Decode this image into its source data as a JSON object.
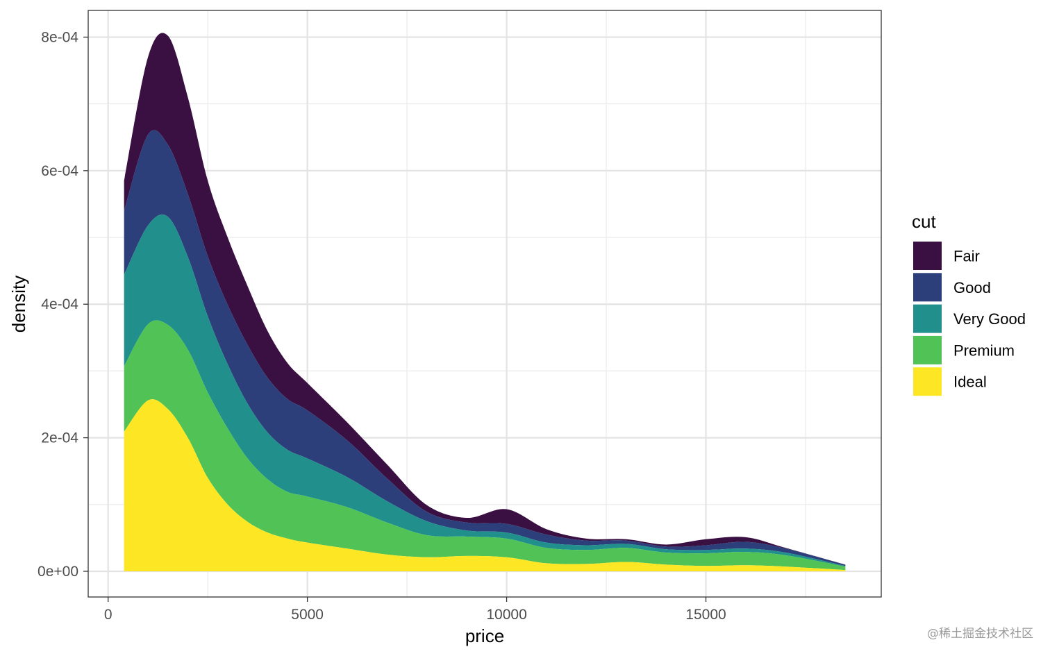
{
  "chart_data": {
    "type": "area",
    "stacked": true,
    "xlabel": "price",
    "ylabel": "density",
    "xlim": [
      -500,
      19400
    ],
    "ylim": [
      -3.85e-05,
      0.00084
    ],
    "xticks": [
      0,
      5000,
      10000,
      15000
    ],
    "xtick_labels": [
      "0",
      "5000",
      "10000",
      "15000"
    ],
    "yticks": [
      0,
      0.0002,
      0.0004,
      0.0006,
      0.0008
    ],
    "ytick_labels": [
      "0e+00",
      "2e-04",
      "4e-04",
      "6e-04",
      "8e-04"
    ],
    "grid": true,
    "legend": {
      "title": "cut",
      "position": "right"
    },
    "x": [
      400,
      1000,
      1500,
      2000,
      2500,
      3000,
      3500,
      4000,
      4500,
      5000,
      6000,
      7000,
      8000,
      9000,
      10000,
      11000,
      12000,
      13000,
      14000,
      15000,
      16000,
      17000,
      18500
    ],
    "series": [
      {
        "name": "Ideal",
        "color": "#FDE725",
        "values": [
          0.000209,
          0.000256,
          0.000243,
          0.0002,
          0.00014,
          0.0001,
          7.4e-05,
          5.8e-05,
          4.9e-05,
          4.3e-05,
          3.4e-05,
          2.5e-05,
          2.1e-05,
          2.3e-05,
          2.1e-05,
          1.2e-05,
          1.1e-05,
          1.4e-05,
          1e-05,
          8e-06,
          9e-06,
          7e-06,
          2e-06
        ]
      },
      {
        "name": "Premium",
        "color": "#51C356",
        "values": [
          9.8e-05,
          0.000114,
          0.000126,
          0.000132,
          0.000128,
          0.000114,
          9.5e-05,
          8e-05,
          7e-05,
          6.9e-05,
          6.2e-05,
          4.8e-05,
          3.3e-05,
          2.9e-05,
          2.8e-05,
          2.3e-05,
          2.1e-05,
          2.1e-05,
          1.8e-05,
          1.9e-05,
          2e-05,
          1.7e-05,
          5e-06
        ]
      },
      {
        "name": "Very Good",
        "color": "#21908D",
        "values": [
          0.000137,
          0.000148,
          0.000162,
          0.000139,
          0.000114,
          9.6e-05,
          8.2e-05,
          7e-05,
          6.3e-05,
          5.7e-05,
          4.5e-05,
          3.2e-05,
          2.1e-05,
          9e-06,
          9e-06,
          8e-06,
          7e-06,
          6e-06,
          5e-06,
          5e-06,
          5e-06,
          4e-06,
          1e-06
        ]
      },
      {
        "name": "Good",
        "color": "#2C3F7B",
        "values": [
          9.6e-05,
          0.000136,
          0.000108,
          9.4e-05,
          9e-05,
          8.9e-05,
          8.8e-05,
          8.2e-05,
          7.6e-05,
          7.2e-05,
          5.5e-05,
          3.4e-05,
          1.4e-05,
          1.2e-05,
          1.3e-05,
          1.2e-05,
          7e-06,
          5e-06,
          4e-06,
          7e-06,
          1e-05,
          6e-06,
          2e-06
        ]
      },
      {
        "name": "Fair",
        "color": "#3A0F42",
        "values": [
          4.5e-05,
          0.000116,
          0.000163,
          0.000145,
          0.000113,
          0.000101,
          8.8e-05,
          7e-05,
          5.4e-05,
          4.1e-05,
          2.7e-05,
          2.1e-05,
          1e-05,
          7e-06,
          2.2e-05,
          8e-06,
          3e-06,
          2e-06,
          3e-06,
          9e-06,
          7e-06,
          1e-06,
          0.0
        ]
      }
    ],
    "legend_order": [
      "Fair",
      "Good",
      "Very Good",
      "Premium",
      "Ideal"
    ]
  },
  "watermark": "@稀土掘金技术社区"
}
